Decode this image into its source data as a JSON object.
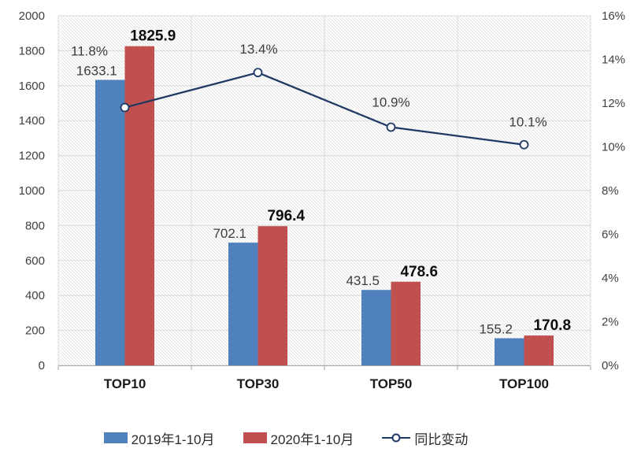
{
  "chart_data": {
    "type": "combo",
    "categories": [
      "TOP10",
      "TOP30",
      "TOP50",
      "TOP100"
    ],
    "series": [
      {
        "name": "2019年1-10月",
        "type": "bar",
        "axis": "left",
        "color": "#4F81BD",
        "values": [
          1633.1,
          702.1,
          431.5,
          155.2
        ],
        "labels": [
          "1633.1",
          "702.1",
          "431.5",
          "155.2"
        ]
      },
      {
        "name": "2020年1-10月",
        "type": "bar",
        "axis": "left",
        "color": "#C0504D",
        "values": [
          1825.9,
          796.4,
          478.6,
          170.8
        ],
        "labels": [
          "1825.9",
          "796.4",
          "478.6",
          "170.8"
        ]
      },
      {
        "name": "同比变动",
        "type": "line",
        "axis": "right",
        "color": "#1F3864",
        "values": [
          11.8,
          13.4,
          10.9,
          10.1
        ],
        "labels": [
          "11.8%",
          "13.4%",
          "10.9%",
          "10.1%"
        ]
      }
    ],
    "left_axis": {
      "min": 0,
      "max": 2000,
      "step": 200,
      "tick_labels": [
        "2000",
        "1800",
        "1600",
        "1400",
        "1200",
        "1000",
        "800",
        "600",
        "400",
        "200",
        "0"
      ]
    },
    "right_axis": {
      "min": 0,
      "max": 16,
      "step": 2,
      "tick_labels": [
        "16%",
        "14%",
        "12%",
        "10%",
        "8%",
        "6%",
        "4%",
        "2%",
        "0%"
      ]
    },
    "grid": {
      "horizontal": true,
      "vertical": true
    },
    "plot_background": "diagonal-hatch",
    "legend_position": "bottom"
  },
  "colors": {
    "bar_2019": "#4F81BD",
    "bar_2020": "#C0504D",
    "line_yoy": "#1F3864",
    "gridline": "#D9D9D9",
    "axis_line": "#A6A6A6",
    "hatch": "#E3E3E3",
    "tick_text": "#404040",
    "label_text": "#3d3d3d",
    "bold_label_text": "#0d0d0d",
    "category_text": "#1a1a1a",
    "background": "#FFFFFF"
  }
}
